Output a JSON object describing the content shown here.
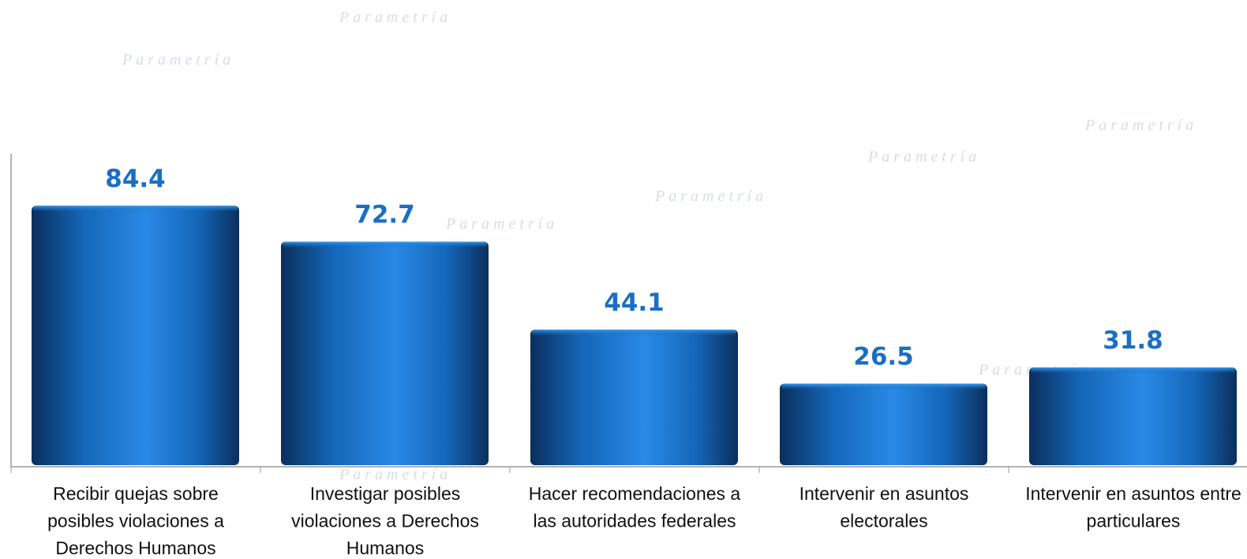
{
  "watermark": "Parametría",
  "chart_data": {
    "type": "bar",
    "categories": [
      "Recibir quejas sobre posibles violaciones a Derechos Humanos",
      "Investigar posibles violaciones a Derechos Humanos",
      "Hacer recomendaciones a las autoridades federales",
      "Intervenir en asuntos electorales",
      "Intervenir en asuntos entre particulares"
    ],
    "values": [
      84.4,
      72.7,
      44.1,
      26.5,
      31.8
    ],
    "color": "#1570c8",
    "ylim": [
      0,
      100
    ]
  }
}
